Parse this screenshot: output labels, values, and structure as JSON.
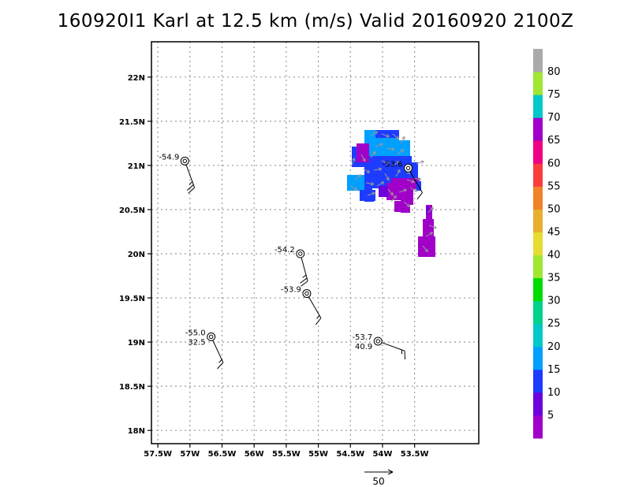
{
  "title": "160920I1 Karl at 12.5 km (m/s) Valid 20160920 2100Z",
  "chart_data": {
    "type": "scatter",
    "xlim": [
      -57.5,
      -52.5
    ],
    "ylim": [
      17.8,
      22.4
    ],
    "xticks": [
      {
        "v": -57.5,
        "label": "57.5W"
      },
      {
        "v": -57.0,
        "label": "57W"
      },
      {
        "v": -56.5,
        "label": "56.5W"
      },
      {
        "v": -56.0,
        "label": "56W"
      },
      {
        "v": -55.5,
        "label": "55.5W"
      },
      {
        "v": -55.0,
        "label": "55W"
      },
      {
        "v": -54.5,
        "label": "54.5W"
      },
      {
        "v": -54.0,
        "label": "54W"
      },
      {
        "v": -53.5,
        "label": "53.5W"
      }
    ],
    "yticks": [
      {
        "v": 18.0,
        "label": "18N"
      },
      {
        "v": 18.5,
        "label": "18.5N"
      },
      {
        "v": 19.0,
        "label": "19N"
      },
      {
        "v": 19.5,
        "label": "19.5N"
      },
      {
        "v": 20.0,
        "label": "20N"
      },
      {
        "v": 20.5,
        "label": "20.5N"
      },
      {
        "v": 21.0,
        "label": "21N"
      },
      {
        "v": 21.5,
        "label": "21.5N"
      },
      {
        "v": 22.0,
        "label": "22N"
      }
    ],
    "grid": true,
    "stations": [
      {
        "lon": -57.08,
        "lat": 21.05,
        "temp": "-54.9",
        "extra": "",
        "wdir": 340,
        "wspd": 25,
        "side": "left"
      },
      {
        "lon": -53.6,
        "lat": 20.97,
        "temp": "-53.6",
        "extra": "",
        "wdir": 330,
        "wspd": 10,
        "side": "left"
      },
      {
        "lon": -55.28,
        "lat": 20.0,
        "temp": "-54.2",
        "extra": "",
        "wdir": 345,
        "wspd": 25,
        "side": "left"
      },
      {
        "lon": -55.18,
        "lat": 19.55,
        "temp": "-53.9",
        "extra": "",
        "wdir": 330,
        "wspd": 15,
        "side": "left"
      },
      {
        "lon": -56.67,
        "lat": 19.06,
        "temp": "-55.0",
        "extra": "32.5",
        "wdir": 335,
        "wspd": 15,
        "side": "left"
      },
      {
        "lon": -54.07,
        "lat": 19.01,
        "temp": "-53.7",
        "extra": "40.9",
        "wdir": 290,
        "wspd": 15,
        "side": "left"
      }
    ],
    "colorbar": {
      "levels": [
        "5",
        "10",
        "15",
        "20",
        "25",
        "30",
        "35",
        "40",
        "45",
        "50",
        "55",
        "60",
        "65",
        "70",
        "75",
        "80"
      ],
      "colors": [
        "#a000c8",
        "#6e00dc",
        "#1e3cff",
        "#00a0ff",
        "#00c8c8",
        "#00d28c",
        "#00dc00",
        "#a0e632",
        "#e6dc32",
        "#e6af2d",
        "#f08228",
        "#fa3c3c",
        "#f00082",
        "#a000c8",
        "#00c8c8",
        "#a0e632",
        "#aaaaaa"
      ]
    },
    "reference_vector": {
      "label": "50",
      "value": 50
    }
  }
}
